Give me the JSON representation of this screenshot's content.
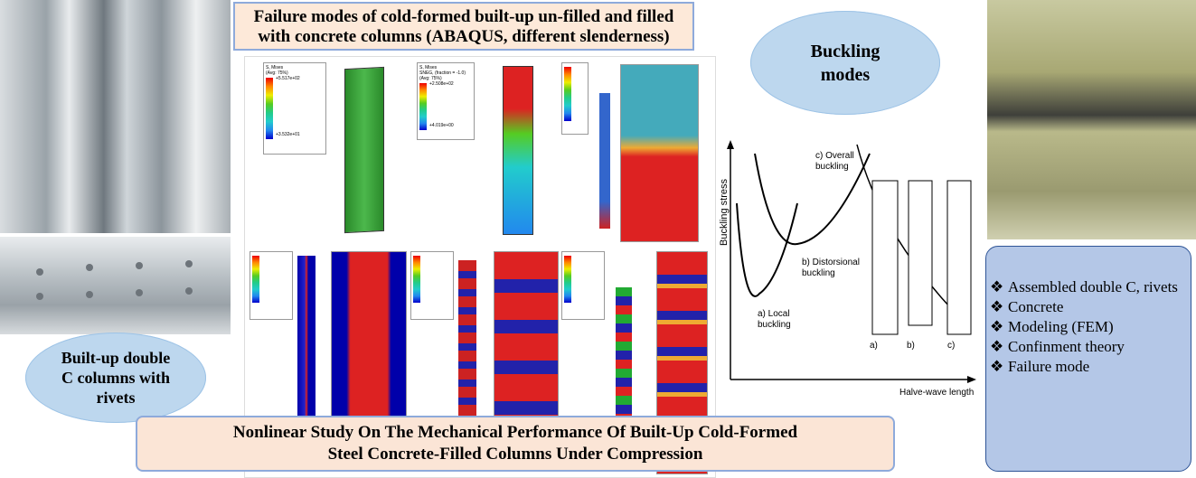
{
  "top_title": {
    "line1": "Failure modes of cold-formed built-up un-filled and filled",
    "line2": "with concrete columns (ABAQUS, different slenderness)"
  },
  "cloud_left": {
    "line1": "Built-up double",
    "line2": "C columns with",
    "line3": "rivets"
  },
  "cloud_right": {
    "line1": "Buckling",
    "line2": "modes"
  },
  "fea_legends": [
    {
      "title": "S, Mises",
      "sub": "(Avg: 75%)",
      "max": "+5.517e+02",
      "min": "+3.532e+01"
    },
    {
      "title": "S, Mises",
      "sub": "SNEG, (fraction = -1.0) (Avg: 75%)",
      "max": "+2.508e+02",
      "min": "+4.019e+00"
    }
  ],
  "buckling_chart": {
    "ylabel": "Buckling stress",
    "xlabel": "Halve-wave length",
    "labels": {
      "local": [
        "a) Local",
        "buckling"
      ],
      "distortional": [
        "b) Distorsional",
        "buckling"
      ],
      "overall": [
        "c) Overall",
        "buckling"
      ]
    },
    "figure_labels": [
      "a)",
      "b)",
      "c)"
    ]
  },
  "scroll_items": [
    {
      "bullet": "❖",
      "text": "Assembled double C, rivets"
    },
    {
      "bullet": "❖",
      "text": "Concrete"
    },
    {
      "bullet": "❖",
      "text": "Modeling (FEM)"
    },
    {
      "bullet": "❖",
      "text": "Confinment theory"
    },
    {
      "bullet": "❖",
      "text": "Failure mode"
    }
  ],
  "bottom_title": {
    "line1": "Nonlinear Study On The Mechanical Performance Of Built-Up Cold-Formed",
    "line2": "Steel Concrete-Filled Columns Under Compression"
  },
  "colors": {
    "cloud": "#bdd7ee",
    "title_bg": "#fde9d9",
    "scroll": "#b4c7e7",
    "border": "#8eaadb"
  }
}
